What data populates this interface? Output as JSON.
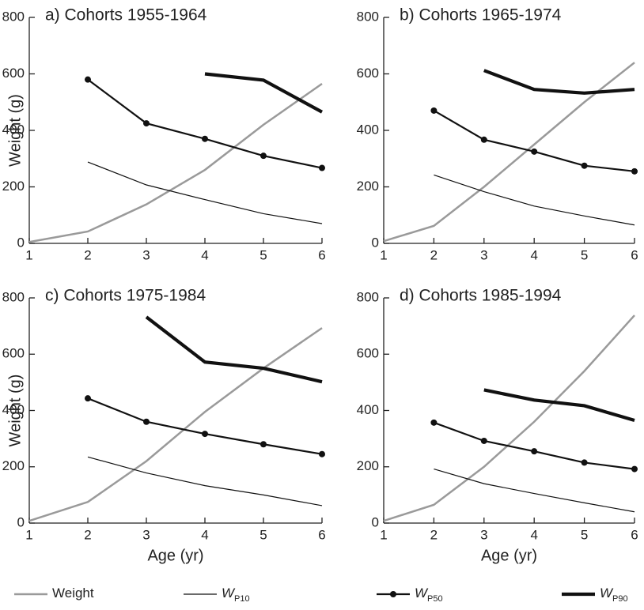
{
  "chart_data": [
    {
      "type": "line",
      "title": "a)  Cohorts 1955-1964",
      "y_label": "Weight (g)",
      "x": [
        1,
        2,
        3,
        4,
        5,
        6
      ],
      "xlim": [
        1,
        6
      ],
      "xticks": [
        1,
        2,
        3,
        4,
        5,
        6
      ],
      "ylim": [
        0,
        800
      ],
      "yticks": [
        0,
        200,
        400,
        600,
        800
      ],
      "series": [
        {
          "name": "Weight",
          "color": "#9a9a9a",
          "values": [
            5,
            42,
            138,
            260,
            420,
            565
          ]
        },
        {
          "name": "W",
          "subscript": "P10",
          "color": "#111111",
          "values": [
            null,
            288,
            207,
            155,
            105,
            70
          ]
        },
        {
          "name": "W",
          "subscript": "P50",
          "color": "#111111",
          "values": [
            null,
            580,
            425,
            370,
            310,
            267
          ]
        },
        {
          "name": "W",
          "subscript": "P90",
          "color": "#111111",
          "values": [
            null,
            null,
            null,
            600,
            578,
            465
          ]
        }
      ]
    },
    {
      "type": "line",
      "title": "b)  Cohorts 1965-1974",
      "x": [
        1,
        2,
        3,
        4,
        5,
        6
      ],
      "xlim": [
        1,
        6
      ],
      "xticks": [
        1,
        2,
        3,
        4,
        5,
        6
      ],
      "ylim": [
        0,
        800
      ],
      "yticks": [
        0,
        200,
        400,
        600,
        800
      ],
      "series": [
        {
          "color": "#9a9a9a",
          "values": [
            8,
            62,
            200,
            350,
            500,
            640
          ]
        },
        {
          "color": "#111111",
          "values": [
            null,
            242,
            183,
            132,
            97,
            65
          ]
        },
        {
          "color": "#111111",
          "values": [
            null,
            470,
            367,
            325,
            275,
            255
          ]
        },
        {
          "color": "#111111",
          "values": [
            null,
            null,
            612,
            545,
            532,
            545
          ]
        }
      ]
    },
    {
      "type": "line",
      "title": "c)  Cohorts 1975-1984",
      "y_label": "Weight (g)",
      "x_label": "Age (yr)",
      "x": [
        1,
        2,
        3,
        4,
        5,
        6
      ],
      "xlim": [
        1,
        6
      ],
      "xticks": [
        1,
        2,
        3,
        4,
        5,
        6
      ],
      "ylim": [
        0,
        800
      ],
      "yticks": [
        0,
        200,
        400,
        600,
        800
      ],
      "series": [
        {
          "color": "#9a9a9a",
          "values": [
            8,
            75,
            220,
            395,
            550,
            693
          ]
        },
        {
          "color": "#111111",
          "values": [
            null,
            235,
            178,
            133,
            100,
            62
          ]
        },
        {
          "color": "#111111",
          "values": [
            null,
            443,
            360,
            317,
            280,
            245
          ]
        },
        {
          "color": "#111111",
          "values": [
            null,
            null,
            732,
            572,
            550,
            502
          ]
        }
      ]
    },
    {
      "type": "line",
      "title": "d)  Cohorts 1985-1994",
      "x_label": "Age (yr)",
      "x": [
        1,
        2,
        3,
        4,
        5,
        6
      ],
      "xlim": [
        1,
        6
      ],
      "xticks": [
        1,
        2,
        3,
        4,
        5,
        6
      ],
      "ylim": [
        0,
        800
      ],
      "yticks": [
        0,
        200,
        400,
        600,
        800
      ],
      "series": [
        {
          "color": "#9a9a9a",
          "values": [
            8,
            65,
            200,
            360,
            540,
            738
          ]
        },
        {
          "color": "#111111",
          "values": [
            null,
            192,
            140,
            105,
            72,
            40
          ]
        },
        {
          "color": "#111111",
          "values": [
            null,
            357,
            292,
            255,
            215,
            192
          ]
        },
        {
          "color": "#111111",
          "values": [
            null,
            null,
            473,
            437,
            417,
            365
          ]
        }
      ]
    }
  ]
}
